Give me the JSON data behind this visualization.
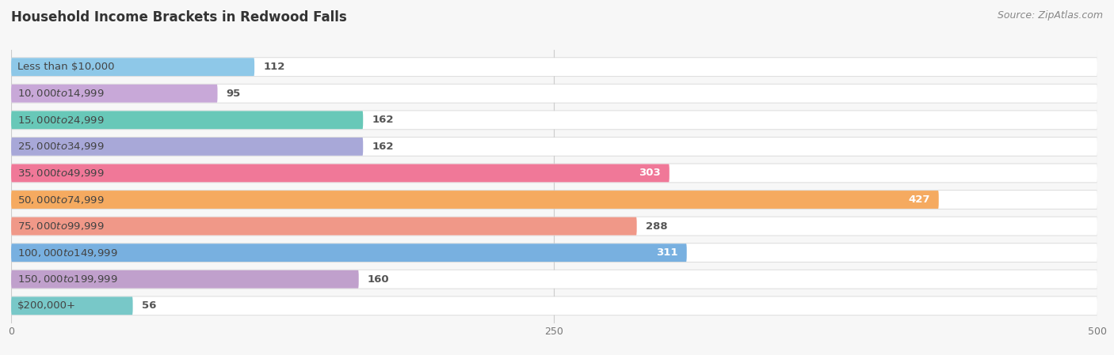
{
  "title": "Household Income Brackets in Redwood Falls",
  "source": "Source: ZipAtlas.com",
  "categories": [
    "Less than $10,000",
    "$10,000 to $14,999",
    "$15,000 to $24,999",
    "$25,000 to $34,999",
    "$35,000 to $49,999",
    "$50,000 to $74,999",
    "$75,000 to $99,999",
    "$100,000 to $149,999",
    "$150,000 to $199,999",
    "$200,000+"
  ],
  "values": [
    112,
    95,
    162,
    162,
    303,
    427,
    288,
    311,
    160,
    56
  ],
  "bar_colors": [
    "#8ec8e8",
    "#c8a8d8",
    "#68c8b8",
    "#a8a8d8",
    "#f07898",
    "#f5aa60",
    "#f09888",
    "#78b0e0",
    "#c0a0cc",
    "#78c8c8"
  ],
  "label_in_bar": [
    false,
    false,
    false,
    false,
    true,
    true,
    false,
    true,
    false,
    false
  ],
  "xlim": [
    0,
    500
  ],
  "xticks": [
    0,
    250,
    500
  ],
  "background_color": "#f7f7f7",
  "row_bg_color": "#ebebeb",
  "bar_height": 0.68,
  "title_fontsize": 12,
  "cat_fontsize": 9.5,
  "val_fontsize": 9.5,
  "source_fontsize": 9
}
